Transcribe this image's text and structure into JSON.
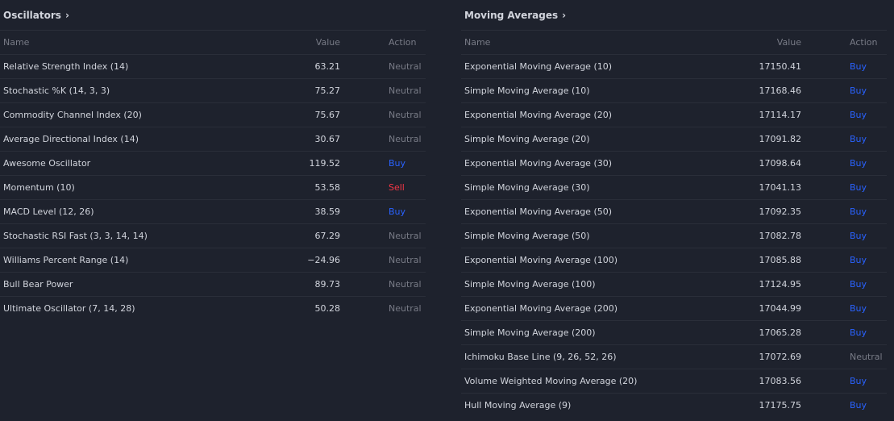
{
  "oscillators": {
    "title": "Oscillators",
    "columns": {
      "name": "Name",
      "value": "Value",
      "action": "Action"
    },
    "rows": [
      {
        "name": "Relative Strength Index (14)",
        "value": "63.21",
        "action": "Neutral"
      },
      {
        "name": "Stochastic %K (14, 3, 3)",
        "value": "75.27",
        "action": "Neutral"
      },
      {
        "name": "Commodity Channel Index (20)",
        "value": "75.67",
        "action": "Neutral"
      },
      {
        "name": "Average Directional Index (14)",
        "value": "30.67",
        "action": "Neutral"
      },
      {
        "name": "Awesome Oscillator",
        "value": "119.52",
        "action": "Buy"
      },
      {
        "name": "Momentum (10)",
        "value": "53.58",
        "action": "Sell"
      },
      {
        "name": "MACD Level (12, 26)",
        "value": "38.59",
        "action": "Buy"
      },
      {
        "name": "Stochastic RSI Fast (3, 3, 14, 14)",
        "value": "67.29",
        "action": "Neutral"
      },
      {
        "name": "Williams Percent Range (14)",
        "value": "−24.96",
        "action": "Neutral"
      },
      {
        "name": "Bull Bear Power",
        "value": "89.73",
        "action": "Neutral"
      },
      {
        "name": "Ultimate Oscillator (7, 14, 28)",
        "value": "50.28",
        "action": "Neutral"
      }
    ]
  },
  "moving_averages": {
    "title": "Moving Averages",
    "columns": {
      "name": "Name",
      "value": "Value",
      "action": "Action"
    },
    "rows": [
      {
        "name": "Exponential Moving Average (10)",
        "value": "17150.41",
        "action": "Buy"
      },
      {
        "name": "Simple Moving Average (10)",
        "value": "17168.46",
        "action": "Buy"
      },
      {
        "name": "Exponential Moving Average (20)",
        "value": "17114.17",
        "action": "Buy"
      },
      {
        "name": "Simple Moving Average (20)",
        "value": "17091.82",
        "action": "Buy"
      },
      {
        "name": "Exponential Moving Average (30)",
        "value": "17098.64",
        "action": "Buy"
      },
      {
        "name": "Simple Moving Average (30)",
        "value": "17041.13",
        "action": "Buy"
      },
      {
        "name": "Exponential Moving Average (50)",
        "value": "17092.35",
        "action": "Buy"
      },
      {
        "name": "Simple Moving Average (50)",
        "value": "17082.78",
        "action": "Buy"
      },
      {
        "name": "Exponential Moving Average (100)",
        "value": "17085.88",
        "action": "Buy"
      },
      {
        "name": "Simple Moving Average (100)",
        "value": "17124.95",
        "action": "Buy"
      },
      {
        "name": "Exponential Moving Average (200)",
        "value": "17044.99",
        "action": "Buy"
      },
      {
        "name": "Simple Moving Average (200)",
        "value": "17065.28",
        "action": "Buy"
      },
      {
        "name": "Ichimoku Base Line (9, 26, 52, 26)",
        "value": "17072.69",
        "action": "Neutral"
      },
      {
        "name": "Volume Weighted Moving Average (20)",
        "value": "17083.56",
        "action": "Buy"
      },
      {
        "name": "Hull Moving Average (9)",
        "value": "17175.75",
        "action": "Buy"
      }
    ]
  },
  "icons": {
    "header_chevron": "chevron-right-icon"
  },
  "colors": {
    "background": "#1e222d",
    "text": "#d1d4dc",
    "muted": "#787b86",
    "buy": "#2962ff",
    "sell": "#f23645",
    "divider": "#2a2e39"
  }
}
